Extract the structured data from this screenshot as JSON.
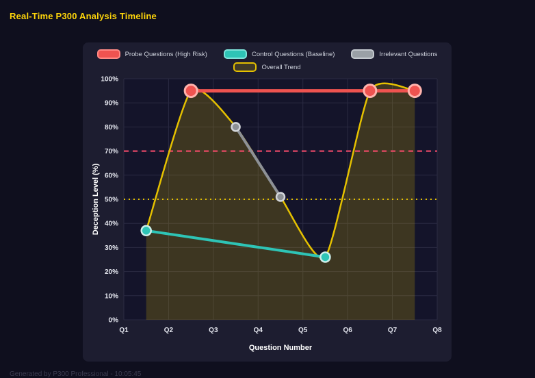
{
  "page": {
    "title": "Real-Time P300 Analysis Timeline",
    "footer": "Generated by P300 Professional - 10:05:45"
  },
  "colors": {
    "page_bg": "#0f0f1e",
    "panel_bg": "#1d1d30",
    "plot_bg": "#14142a",
    "grid": "#2a2a42",
    "tick_text": "#e6e8f0",
    "axis_text": "#ffffff",
    "title": "#ffd60a",
    "area_fill": "rgba(225,189,0,0.20)"
  },
  "chart_data": {
    "type": "line",
    "title": "Real-Time P300 Analysis Timeline",
    "xlabel": "Question Number",
    "ylabel": "Deception Level (%)",
    "xlim": [
      1,
      8
    ],
    "ylim": [
      0,
      100
    ],
    "grid": true,
    "legend_position": "top",
    "legend_rows": [
      [
        0,
        1,
        2
      ],
      [
        3
      ]
    ],
    "x_ticks": [
      {
        "value": 1,
        "label": "Q1"
      },
      {
        "value": 2,
        "label": "Q2"
      },
      {
        "value": 3,
        "label": "Q3"
      },
      {
        "value": 4,
        "label": "Q4"
      },
      {
        "value": 5,
        "label": "Q5"
      },
      {
        "value": 6,
        "label": "Q6"
      },
      {
        "value": 7,
        "label": "Q7"
      },
      {
        "value": 8,
        "label": "Q8"
      }
    ],
    "y_ticks": [
      {
        "value": 0,
        "label": "0%"
      },
      {
        "value": 10,
        "label": "10%"
      },
      {
        "value": 20,
        "label": "20%"
      },
      {
        "value": 30,
        "label": "30%"
      },
      {
        "value": 40,
        "label": "40%"
      },
      {
        "value": 50,
        "label": "50%"
      },
      {
        "value": 60,
        "label": "60%"
      },
      {
        "value": 70,
        "label": "70%"
      },
      {
        "value": 80,
        "label": "80%"
      },
      {
        "value": 90,
        "label": "90%"
      },
      {
        "value": 100,
        "label": "100%"
      }
    ],
    "thresholds": [
      {
        "y": 70,
        "color": "#ff4d6d",
        "dash": "7 6",
        "width": 2
      },
      {
        "y": 50,
        "color": "#e5c100",
        "dash": "2 5",
        "width": 2
      }
    ],
    "series": [
      {
        "name": "Probe Questions (High Risk)",
        "x": [
          2.5,
          6.5,
          7.5
        ],
        "y": [
          95,
          95,
          95
        ],
        "color": "#ef5350",
        "line_width": 5,
        "point_radius": 9,
        "point_stroke": "#ffb3ad",
        "point_stroke_width": 3,
        "smooth": false,
        "area": false,
        "swatch": {
          "fill": "#ef5350",
          "border": "#ff8a85"
        }
      },
      {
        "name": "Control Questions (Baseline)",
        "x": [
          1.5,
          5.5
        ],
        "y": [
          37,
          26
        ],
        "color": "#2ec4b6",
        "line_width": 4,
        "point_radius": 7,
        "point_stroke": "#cdeeea",
        "point_stroke_width": 2.5,
        "smooth": false,
        "area": false,
        "swatch": {
          "fill": "#2ec4b6",
          "border": "#7fe3da"
        }
      },
      {
        "name": "Irrelevant Questions",
        "x": [
          3.5,
          4.5
        ],
        "y": [
          80,
          51
        ],
        "color": "#8d9196",
        "line_width": 4,
        "point_radius": 6,
        "point_stroke": "#d3d6da",
        "point_stroke_width": 2.5,
        "smooth": false,
        "area": false,
        "swatch": {
          "fill": "#9aa0a6",
          "border": "#c4c9cf"
        }
      },
      {
        "name": "Overall Trend",
        "x": [
          1.5,
          2.5,
          3.5,
          4.5,
          5.5,
          6.5,
          7.5
        ],
        "y": [
          37,
          95,
          80,
          51,
          26,
          95,
          95
        ],
        "color": "#e5c100",
        "line_width": 2.5,
        "point_radius": 0,
        "point_stroke": "#e5c100",
        "point_stroke_width": 0,
        "smooth": true,
        "area": true,
        "swatch": {
          "fill": "rgba(229,193,0,0.18)",
          "border": "#e5c100"
        }
      }
    ]
  }
}
